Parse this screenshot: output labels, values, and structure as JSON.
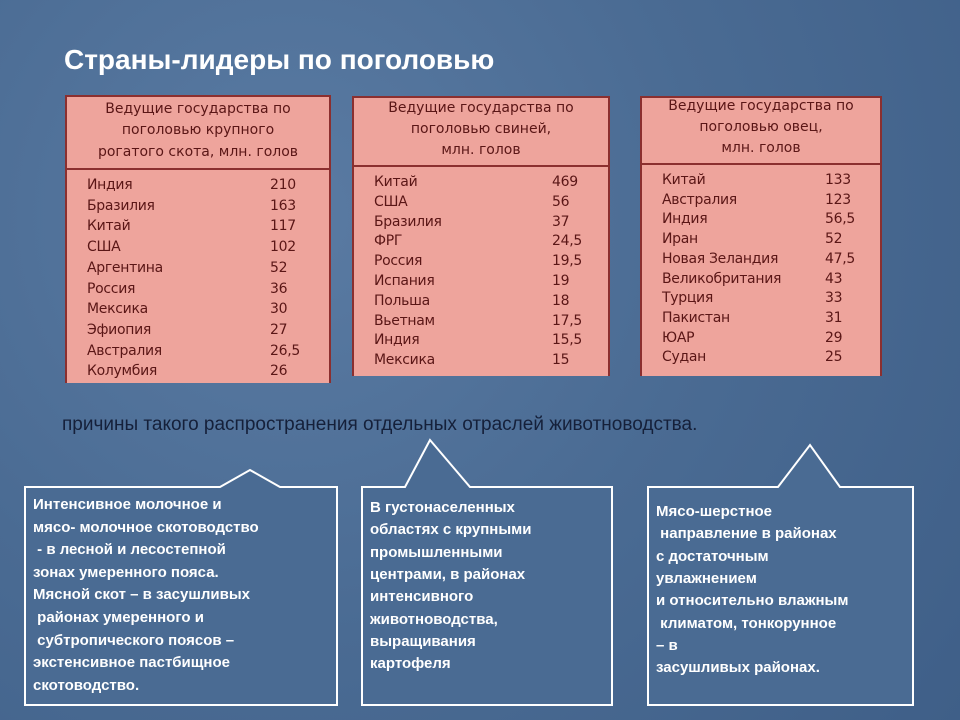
{
  "title": "Страны-лидеры по поголовью",
  "tables": [
    {
      "header": [
        "Ведущие государства по",
        "поголовью крупного",
        "рогатого скота, млн. голов"
      ],
      "rows": [
        {
          "name": "Индия",
          "value": "210"
        },
        {
          "name": "Бразилия",
          "value": "163"
        },
        {
          "name": "Китай",
          "value": "117"
        },
        {
          "name": "США",
          "value": "102"
        },
        {
          "name": "Аргентина",
          "value": "52"
        },
        {
          "name": "Россия",
          "value": "36"
        },
        {
          "name": "Мексика",
          "value": "30"
        },
        {
          "name": "Эфиопия",
          "value": "27"
        },
        {
          "name": "Австралия",
          "value": "26,5"
        },
        {
          "name": "Колумбия",
          "value": "26"
        }
      ]
    },
    {
      "header": [
        "Ведущие государства по",
        "поголовью свиней,",
        "млн. голов"
      ],
      "rows": [
        {
          "name": "Китай",
          "value": "469"
        },
        {
          "name": "США",
          "value": "56"
        },
        {
          "name": "Бразилия",
          "value": "37"
        },
        {
          "name": "ФРГ",
          "value": "24,5"
        },
        {
          "name": "Россия",
          "value": "19,5"
        },
        {
          "name": "Испания",
          "value": "19"
        },
        {
          "name": "Польша",
          "value": "18"
        },
        {
          "name": "Вьетнам",
          "value": "17,5"
        },
        {
          "name": "Индия",
          "value": "15,5"
        },
        {
          "name": "Мексика",
          "value": "15"
        }
      ]
    },
    {
      "header": [
        "Ведущие государства по",
        "поголовью овец,",
        "млн. голов"
      ],
      "rows": [
        {
          "name": "Китай",
          "value": "133"
        },
        {
          "name": "Австралия",
          "value": "123"
        },
        {
          "name": "Индия",
          "value": "56,5"
        },
        {
          "name": "Иран",
          "value": "52"
        },
        {
          "name": "Новая Зеландия",
          "value": "47,5"
        },
        {
          "name": "Великобритания",
          "value": "43"
        },
        {
          "name": "Турция",
          "value": "33"
        },
        {
          "name": "Пакистан",
          "value": "31"
        },
        {
          "name": "ЮАР",
          "value": "29"
        },
        {
          "name": "Судан",
          "value": "25"
        }
      ]
    }
  ],
  "subtitle": "причины такого распространения отдельных отраслей животноводства.",
  "callouts": [
    {
      "lines": [
        "Интенсивное молочное и",
        "мясо- молочное скотоводство",
        " - в лесной и лесостепной",
        "зонах умеренного пояса.",
        "Мясной скот – в засушливых",
        " районах умеренного и",
        " субтропического поясов –",
        "экстенсивное пастбищное",
        "скотоводство."
      ]
    },
    {
      "lines": [
        "В густонаселенных",
        "областях с крупными",
        "промышленными",
        "центрами, в районах",
        "интенсивного",
        "животноводства,",
        "выращивания",
        "картофеля"
      ]
    },
    {
      "lines": [
        "Мясо-шерстное",
        " направление в районах",
        "с достаточным",
        "увлажнением",
        "и относительно влажным",
        " климатом, тонкорунное",
        "– в",
        "засушливых районах."
      ]
    }
  ]
}
